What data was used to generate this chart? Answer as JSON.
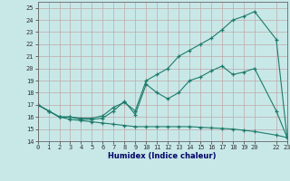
{
  "xlabel": "Humidex (Indice chaleur)",
  "xlim": [
    0,
    23
  ],
  "ylim": [
    14,
    25.5
  ],
  "yticks": [
    14,
    15,
    16,
    17,
    18,
    19,
    20,
    21,
    22,
    23,
    24,
    25
  ],
  "xtick_positions": [
    0,
    1,
    2,
    3,
    4,
    5,
    6,
    7,
    8,
    9,
    10,
    11,
    12,
    13,
    14,
    15,
    16,
    17,
    18,
    19,
    20,
    22,
    23
  ],
  "xtick_labels": [
    "0",
    "1",
    "2",
    "3",
    "4",
    "5",
    "6",
    "7",
    "8",
    "9",
    "10",
    "11",
    "12",
    "13",
    "14",
    "15",
    "16",
    "17",
    "18",
    "19",
    "20",
    "22",
    "23"
  ],
  "line_color": "#1e7b6a",
  "background_color": "#c8e8e8",
  "grid_color": "#b0d0d0",
  "line1_x": [
    0,
    1,
    2,
    3,
    4,
    5,
    6,
    7,
    8,
    9,
    10,
    11,
    12,
    13,
    14,
    15,
    16,
    17,
    18,
    19,
    20,
    22,
    23
  ],
  "line1_y": [
    17.0,
    16.5,
    16.0,
    15.8,
    15.7,
    15.6,
    15.5,
    15.4,
    15.3,
    15.2,
    15.2,
    15.2,
    15.2,
    15.2,
    15.2,
    15.15,
    15.1,
    15.05,
    15.0,
    14.9,
    14.8,
    14.5,
    14.3
  ],
  "line2_x": [
    0,
    1,
    2,
    3,
    4,
    5,
    6,
    7,
    8,
    9,
    10,
    11,
    12,
    13,
    14,
    15,
    16,
    17,
    18,
    19,
    20,
    22,
    23
  ],
  "line2_y": [
    17.0,
    16.5,
    16.0,
    16.0,
    15.8,
    15.8,
    15.9,
    16.5,
    17.3,
    16.2,
    18.7,
    18.0,
    17.5,
    18.0,
    19.0,
    19.3,
    19.8,
    20.2,
    19.5,
    19.7,
    20.0,
    16.5,
    14.3
  ],
  "line3_x": [
    0,
    1,
    2,
    3,
    4,
    5,
    6,
    7,
    8,
    9,
    10,
    11,
    12,
    13,
    14,
    15,
    16,
    17,
    18,
    19,
    20,
    22,
    23
  ],
  "line3_y": [
    17.0,
    16.5,
    16.0,
    16.0,
    15.9,
    15.9,
    16.1,
    16.8,
    17.2,
    16.5,
    19.0,
    19.5,
    20.0,
    21.0,
    21.5,
    22.0,
    22.5,
    23.2,
    24.0,
    24.3,
    24.7,
    22.4,
    14.3
  ]
}
